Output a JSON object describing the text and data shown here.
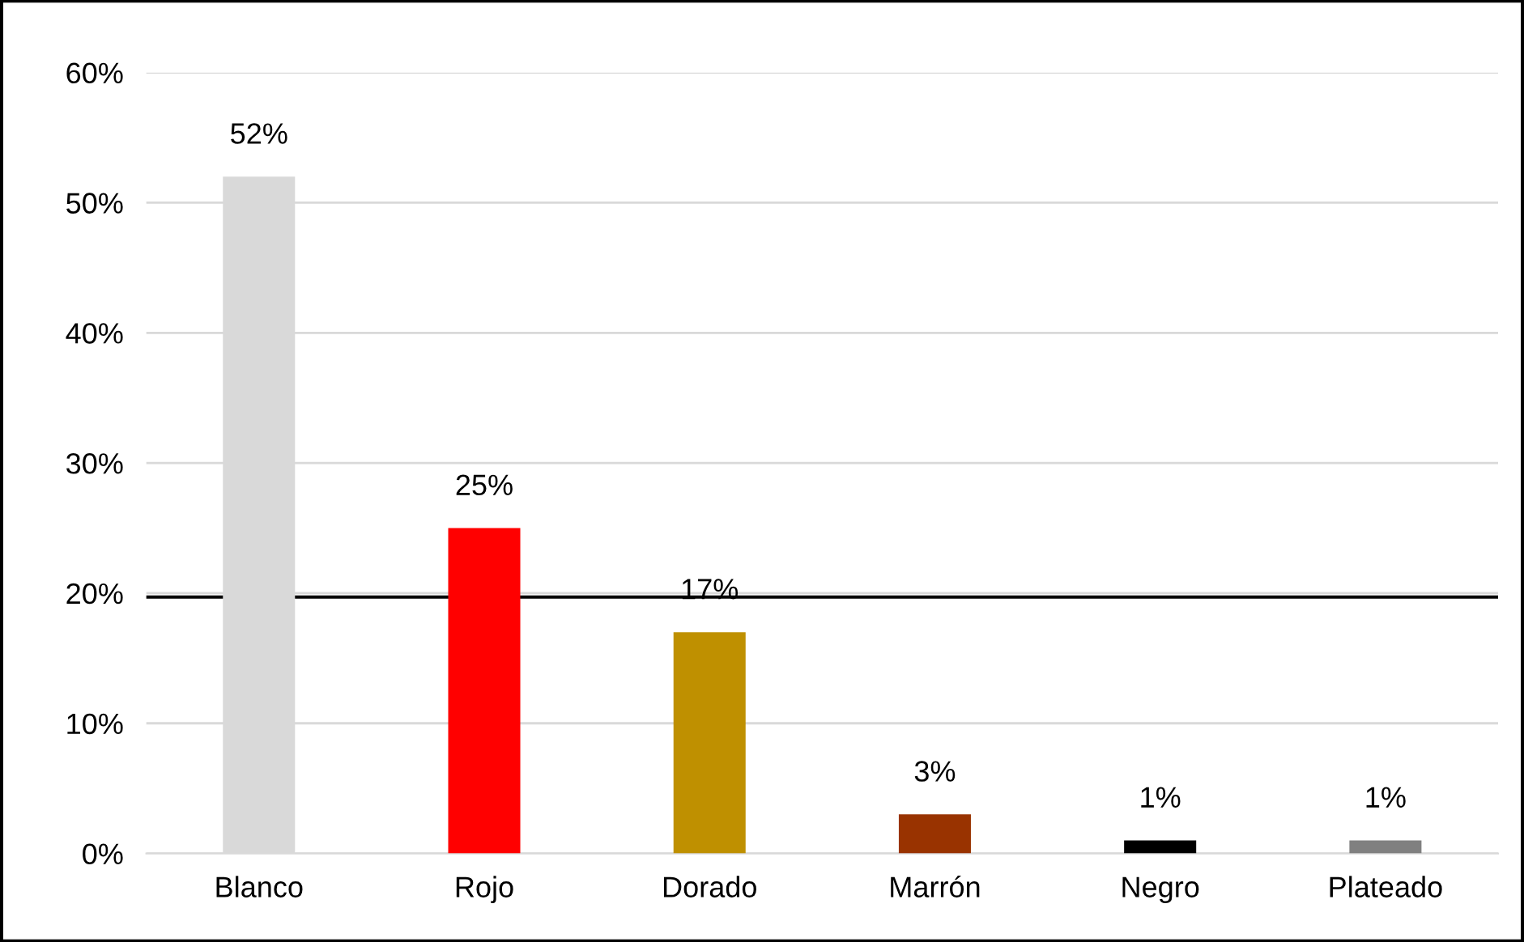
{
  "chart_data": {
    "type": "bar",
    "categories": [
      "Blanco",
      "Rojo",
      "Dorado",
      "Marrón",
      "Negro",
      "Plateado"
    ],
    "values": [
      52,
      25,
      17,
      3,
      1,
      1
    ],
    "colors": [
      "#d9d9d9",
      "#ff0000",
      "#bf9000",
      "#993300",
      "#000000",
      "#808080"
    ],
    "value_labels": [
      "52%",
      "25%",
      "17%",
      "3%",
      "1%",
      "1%"
    ],
    "ylim": [
      0,
      60
    ],
    "yticks": [
      {
        "value": 0,
        "label": "0%"
      },
      {
        "value": 10,
        "label": "10%"
      },
      {
        "value": 20,
        "label": "20%"
      },
      {
        "value": 30,
        "label": "30%"
      },
      {
        "value": 40,
        "label": "40%"
      },
      {
        "value": 50,
        "label": "50%"
      },
      {
        "value": 60,
        "label": "60%"
      }
    ],
    "grid": "y",
    "ref_lines": [
      {
        "axis": "y",
        "value": 19.7,
        "color": "#000000",
        "line_style": "solid"
      }
    ]
  }
}
